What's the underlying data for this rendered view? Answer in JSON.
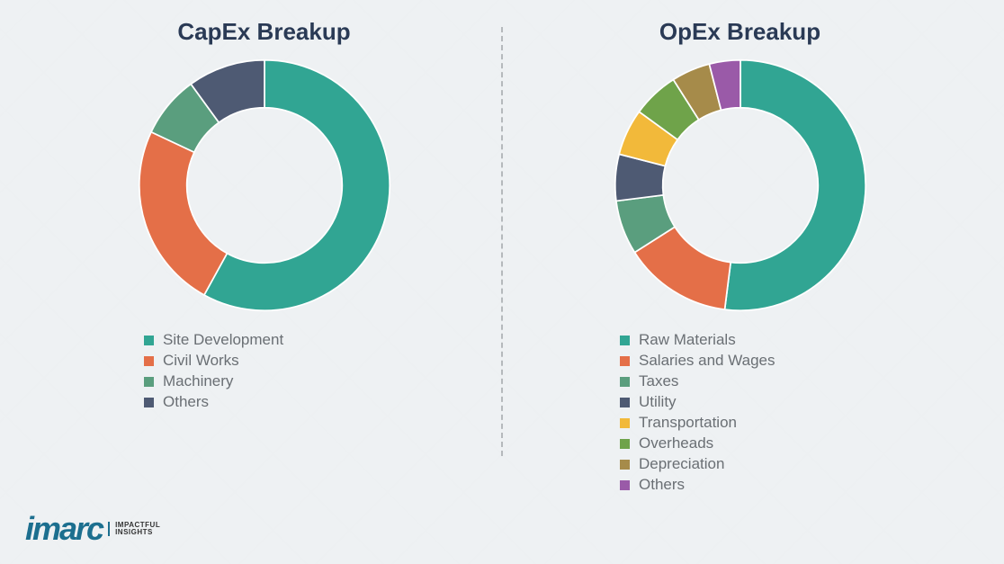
{
  "background_color": "#eef1f3",
  "divider_color": "#b5b9bc",
  "title_color": "#2a3a55",
  "legend_text_color": "#6a6f74",
  "logo": {
    "mark": "imarc",
    "tagline_line1": "IMPACTFUL",
    "tagline_line2": "INSIGHTS",
    "color": "#1c6f8f"
  },
  "charts": [
    {
      "title": "CapEx Breakup",
      "type": "donut",
      "inner_radius_ratio": 0.62,
      "stroke_color": "#ffffff",
      "stroke_width": 2,
      "slices": [
        {
          "label": "Site Development",
          "value": 58,
          "color": "#31a593"
        },
        {
          "label": "Civil Works",
          "value": 24,
          "color": "#e46f48"
        },
        {
          "label": "Machinery",
          "value": 8,
          "color": "#5a9e7e"
        },
        {
          "label": "Others",
          "value": 10,
          "color": "#4e5a73"
        }
      ]
    },
    {
      "title": "OpEx Breakup",
      "type": "donut",
      "inner_radius_ratio": 0.62,
      "stroke_color": "#ffffff",
      "stroke_width": 2,
      "slices": [
        {
          "label": "Raw Materials",
          "value": 52,
          "color": "#31a593"
        },
        {
          "label": "Salaries and Wages",
          "value": 14,
          "color": "#e46f48"
        },
        {
          "label": "Taxes",
          "value": 7,
          "color": "#5a9e7e"
        },
        {
          "label": "Utility",
          "value": 6,
          "color": "#4e5a73"
        },
        {
          "label": "Transportation",
          "value": 6,
          "color": "#f2b93a"
        },
        {
          "label": "Overheads",
          "value": 6,
          "color": "#6fa34a"
        },
        {
          "label": "Depreciation",
          "value": 5,
          "color": "#a68b4a"
        },
        {
          "label": "Others",
          "value": 4,
          "color": "#9a5aa8"
        }
      ]
    }
  ]
}
